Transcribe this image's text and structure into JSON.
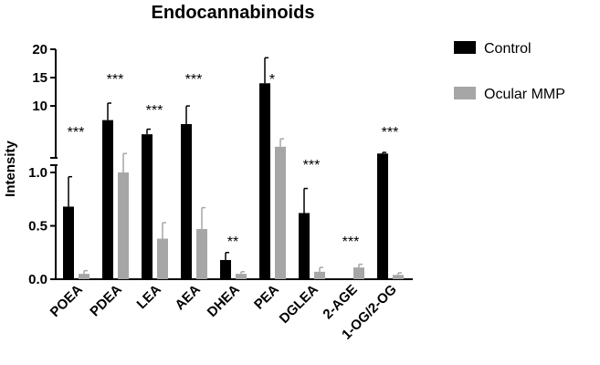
{
  "chart_data": {
    "type": "bar",
    "title": "Endocannabinoids",
    "ylabel": "Intensity",
    "xlabel": "",
    "categories": [
      "POEA",
      "PDEA",
      "LEA",
      "AEA",
      "DHEA",
      "PEA",
      "DGLEA",
      "2-AGE",
      "1-OG/2-OG"
    ],
    "series": [
      {
        "name": "Control",
        "color": "#000000",
        "values": [
          0.68,
          7.5,
          5.0,
          6.8,
          0.18,
          14.0,
          0.62,
          0.0,
          1.6
        ],
        "errors": [
          0.28,
          3.0,
          0.9,
          3.2,
          0.07,
          4.5,
          0.23,
          0.0,
          0.2
        ]
      },
      {
        "name": "Ocular MMP",
        "color": "#a6a6a6",
        "values": [
          0.05,
          1.0,
          0.38,
          0.47,
          0.05,
          2.8,
          0.07,
          0.11,
          0.04
        ],
        "errors": [
          0.03,
          0.6,
          0.15,
          0.2,
          0.02,
          1.4,
          0.04,
          0.03,
          0.02
        ]
      }
    ],
    "significance": [
      "***",
      "***",
      "***",
      "***",
      "**",
      "*",
      "***",
      "***",
      "***"
    ],
    "y_axis": {
      "broken": true,
      "lower_range": [
        0,
        1.0
      ],
      "lower_ticks": [
        "0.0",
        "0.5",
        "1.0"
      ],
      "upper_range": [
        1.0,
        20
      ],
      "upper_ticks": [
        "10",
        "15",
        "20"
      ]
    },
    "legend_position": "right",
    "grid": false
  }
}
